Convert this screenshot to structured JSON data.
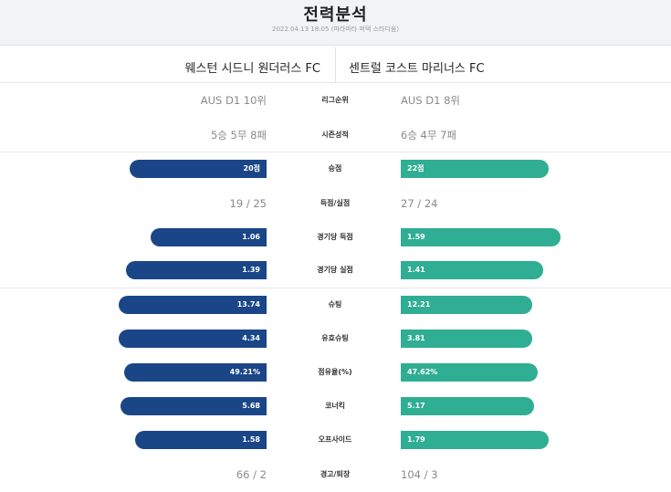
{
  "header": {
    "title": "전력분석",
    "meta": "2022.04.13 18:05 (파라마타 퍼텍 스타디움)"
  },
  "teams": {
    "home": "웨스턴 시드니 원더러스 FC",
    "away": "센트럴 코스트 마리너스 FC"
  },
  "colors": {
    "home_bar": "#1a4688",
    "away_bar": "#2fae93"
  },
  "text_rows": {
    "league_rank": {
      "label": "리그순위",
      "home": "AUS D1 10위",
      "away": "AUS D1 8위"
    },
    "season_record": {
      "label": "시즌성적",
      "home": "5승 5무 8패",
      "away": "6승 4무 7패"
    },
    "goals_for_against": {
      "label": "득점/실점",
      "home": "19 / 25",
      "away": "27 / 24"
    },
    "cards": {
      "label": "경고/퇴장",
      "home": "66 / 2",
      "away": "104 / 3"
    }
  },
  "bar_rows": {
    "points": {
      "label": "승점",
      "home_text": "20점",
      "away_text": "22점",
      "home_fill": 0.79,
      "away_fill": 0.85
    },
    "goals_per_game": {
      "label": "경기당 득점",
      "home_text": "1.06",
      "away_text": "1.59",
      "home_fill": 0.67,
      "away_fill": 0.92
    },
    "conceded_per_game": {
      "label": "경기당 실점",
      "home_text": "1.39",
      "away_text": "1.41",
      "home_fill": 0.81,
      "away_fill": 0.82
    },
    "shots": {
      "label": "슈팅",
      "home_text": "13.74",
      "away_text": "12.21",
      "home_fill": 0.85,
      "away_fill": 0.76
    },
    "shots_on_target": {
      "label": "유효슈팅",
      "home_text": "4.34",
      "away_text": "3.81",
      "home_fill": 0.85,
      "away_fill": 0.76
    },
    "possession": {
      "label": "점유율(%)",
      "home_text": "49.21%",
      "away_text": "47.62%",
      "home_fill": 0.82,
      "away_fill": 0.79
    },
    "corners": {
      "label": "코너킥",
      "home_text": "5.68",
      "away_text": "5.17",
      "home_fill": 0.84,
      "away_fill": 0.77
    },
    "offsides": {
      "label": "오프사이드",
      "home_text": "1.58",
      "away_text": "1.79",
      "home_fill": 0.76,
      "away_fill": 0.85
    }
  }
}
